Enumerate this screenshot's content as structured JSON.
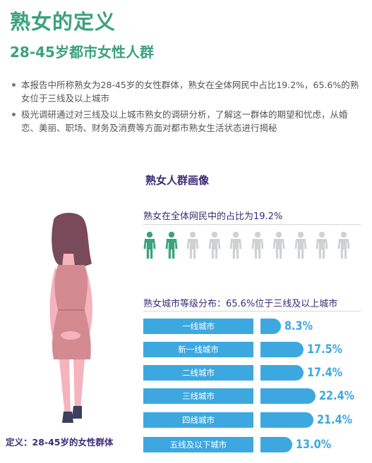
{
  "header": {
    "title": "熟女的定义",
    "subtitle": "28-45岁都市女性人群"
  },
  "bullets": [
    "本报告中所称熟女为28-45岁的女性群体，熟女在全体网民中占比19.2%，65.6%的熟女位于三线及以上城市",
    "极光调研通过对三线及以上城市熟女的调研分析，了解这一群体的期望和忧虑，从婚恋、美丽、职场、财务及消费等方面对都市熟女生活状态进行揭秘"
  ],
  "portrait": {
    "title": "熟女人群画像",
    "share_label": "熟女在全体网民中的占比为19.2%",
    "icons_total": 10,
    "icons_highlighted": 2,
    "distribution_label": "熟女城市等级分布：65.6%位于三线及以上城市"
  },
  "definition_label": "定义：28-45岁的女性群体",
  "city_distribution": [
    {
      "city": "一线城市",
      "value": 8.3,
      "label": "8.3%"
    },
    {
      "city": "新一线城市",
      "value": 17.5,
      "label": "17.5%"
    },
    {
      "city": "二线城市",
      "value": 17.4,
      "label": "17.4%"
    },
    {
      "city": "三线城市",
      "value": 22.4,
      "label": "22.4%"
    },
    {
      "city": "四线城市",
      "value": 21.4,
      "label": "21.4%"
    },
    {
      "city": "五线及以下城市",
      "value": 13.0,
      "label": "13.0%"
    }
  ],
  "colors": {
    "green": "#3aa27c",
    "purple": "#3a2b78",
    "blue": "#3da8e0",
    "icon_active": "#3aa27c",
    "icon_inactive": "#cfd1d3"
  }
}
